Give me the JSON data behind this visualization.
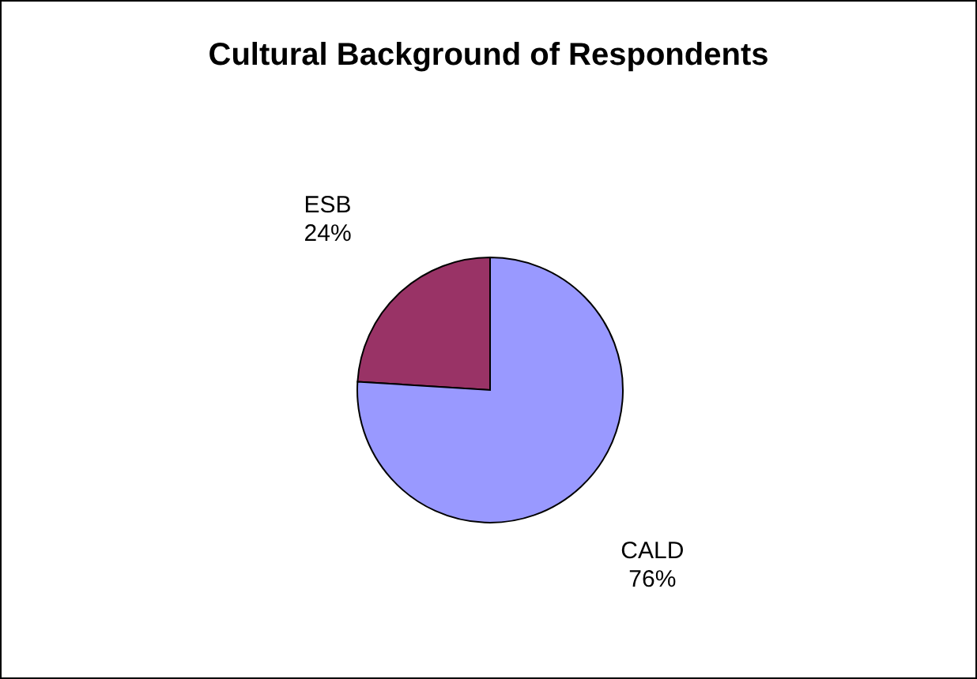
{
  "chart_data": {
    "type": "pie",
    "title": "Cultural Background of Respondents",
    "categories": [
      "ESB",
      "CALD"
    ],
    "values": [
      24,
      76
    ],
    "colors": [
      "#993366",
      "#9999ff"
    ],
    "value_labels": [
      "24%",
      "76%"
    ]
  }
}
